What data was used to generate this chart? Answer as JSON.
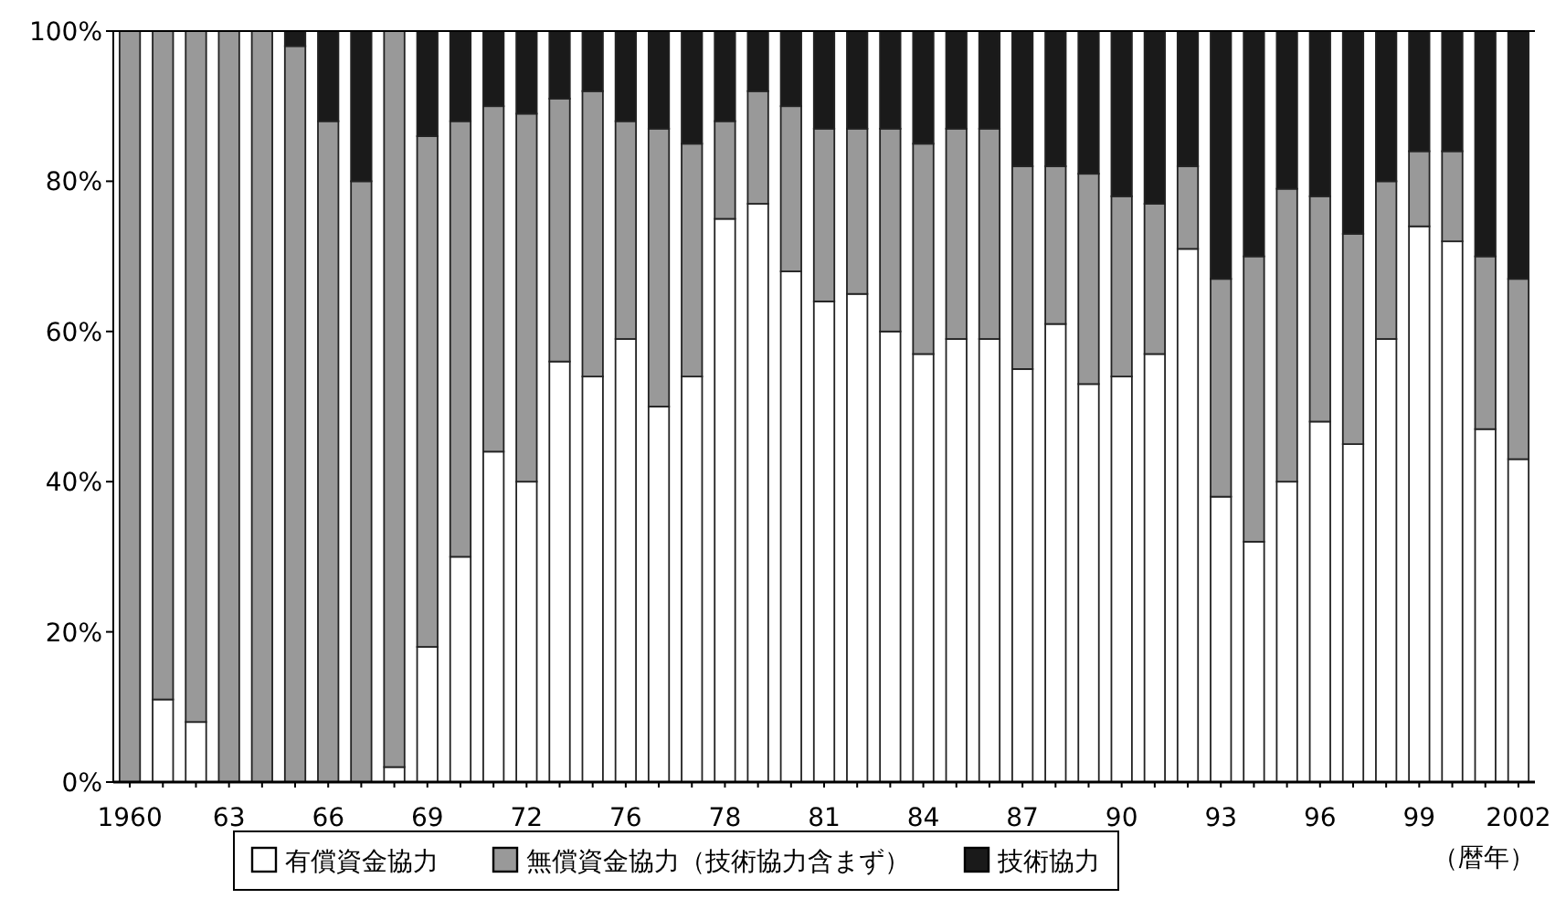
{
  "chart_data": {
    "type": "bar",
    "stacked": true,
    "xlabel": "（暦年）",
    "legend": "bottom",
    "categories": [
      "1960",
      null,
      null,
      "63",
      null,
      null,
      "66",
      null,
      null,
      "69",
      null,
      null,
      "72",
      null,
      null,
      "76",
      null,
      null,
      "78",
      null,
      null,
      "81",
      null,
      null,
      "84",
      null,
      null,
      "87",
      null,
      null,
      "90",
      null,
      null,
      "93",
      null,
      null,
      "96",
      null,
      null,
      "99",
      null,
      null,
      "2002"
    ],
    "ylim": [
      0,
      100
    ],
    "yticks": [
      {
        "value": 0,
        "label": "0%"
      },
      {
        "value": 20,
        "label": "20%"
      },
      {
        "value": 40,
        "label": "40%"
      },
      {
        "value": 60,
        "label": "60%"
      },
      {
        "value": 80,
        "label": "80%"
      },
      {
        "value": 100,
        "label": "100%"
      }
    ],
    "series": [
      {
        "name": "有償資金協力",
        "color": "#ffffff",
        "values": [
          0,
          11,
          8,
          0,
          0,
          0,
          0,
          0,
          2,
          18,
          30,
          44,
          40,
          56,
          54,
          59,
          50,
          54,
          75,
          77,
          68,
          64,
          65,
          60,
          57,
          59,
          59,
          55,
          61,
          53,
          54,
          57,
          71,
          38,
          32,
          40,
          48,
          45,
          59,
          74,
          72,
          47,
          43
        ]
      },
      {
        "name": "無償資金協力（技術協力含まず）",
        "color": "#999999",
        "values": [
          100,
          89,
          92,
          100,
          100,
          98,
          88,
          80,
          98,
          68,
          58,
          46,
          49,
          35,
          38,
          29,
          37,
          31,
          13,
          15,
          22,
          23,
          22,
          27,
          28,
          28,
          28,
          27,
          21,
          28,
          24,
          20,
          11,
          29,
          38,
          39,
          30,
          28,
          21,
          10,
          12,
          23,
          24
        ]
      },
      {
        "name": "技術協力",
        "color": "#1a1a1a",
        "values": [
          0,
          0,
          0,
          0,
          0,
          2,
          12,
          20,
          0,
          14,
          12,
          10,
          11,
          9,
          8,
          12,
          13,
          15,
          12,
          8,
          10,
          13,
          13,
          13,
          15,
          13,
          13,
          18,
          18,
          19,
          22,
          23,
          18,
          33,
          30,
          21,
          22,
          27,
          20,
          16,
          16,
          30,
          33
        ]
      }
    ]
  }
}
